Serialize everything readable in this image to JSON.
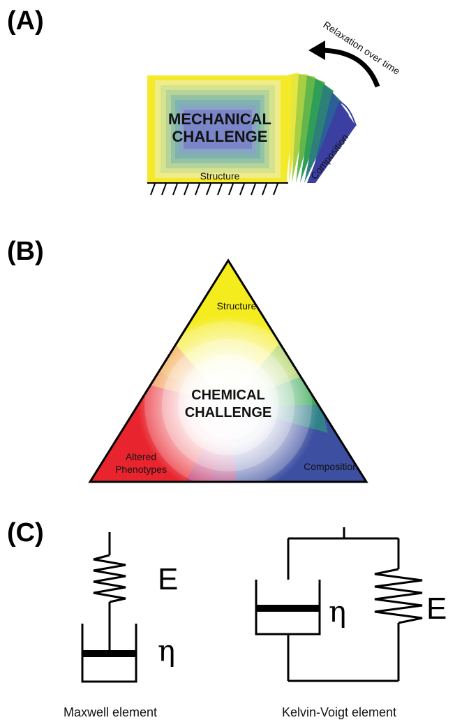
{
  "panel_a": {
    "label": "(A)",
    "title_line1": "MECHANICAL",
    "title_line2": "CHALLENGE",
    "structure_label": "Structure",
    "composition_label": "Composition",
    "arrow_label": "Relaxation over time",
    "colors": [
      "#f4ea2a",
      "#f0ec8a",
      "#d6e38e",
      "#b6d49a",
      "#93c3a4",
      "#7fb3b0",
      "#8aa5c4",
      "#7b86c8"
    ]
  },
  "panel_b": {
    "label": "(B)",
    "title_line1": "CHEMICAL",
    "title_line2": "CHALLENGE",
    "top_label": "Structure",
    "left_label_line1": "Altered",
    "left_label_line2": "Phenotypes",
    "right_label": "Composition",
    "colors": {
      "top": "#f5ec1e",
      "left": "#e8252e",
      "right": "#3d4fa0",
      "green": "#2aa24a",
      "center": "#ffffff"
    }
  },
  "panel_c": {
    "label": "(C)",
    "maxwell_spring_symbol": "E",
    "maxwell_dashpot_symbol": "η",
    "maxwell_caption": "Maxwell element",
    "kv_spring_symbol": "E",
    "kv_dashpot_symbol": "η",
    "kv_caption": "Kelvin-Voigt element"
  }
}
